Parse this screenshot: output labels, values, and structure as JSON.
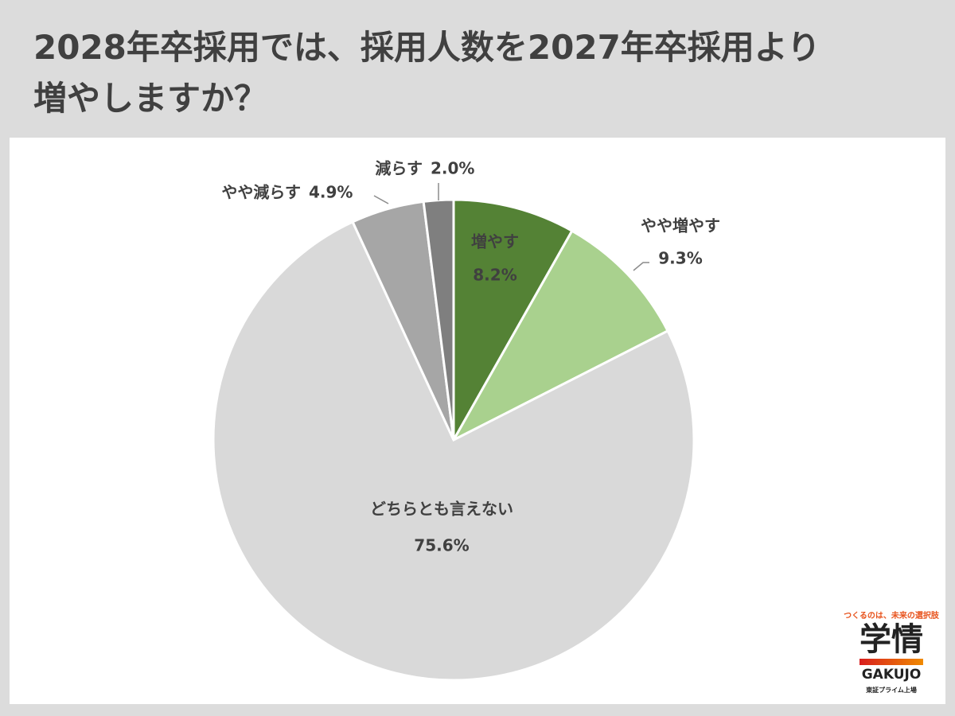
{
  "chart_data": {
    "type": "pie",
    "title": "2028年卒採用では、採用人数を2027年卒採用より増やしますか？",
    "categories": [
      "増やす",
      "やや増やす",
      "どちらとも言えない",
      "やや減らす",
      "減らす"
    ],
    "values": [
      8.2,
      9.3,
      75.6,
      4.9,
      2.0
    ],
    "value_labels": [
      "8.2%",
      "9.3%",
      "75.6%",
      "4.9%",
      "2.0%"
    ],
    "colors": [
      "#548235",
      "#a9d18e",
      "#d9d9d9",
      "#a6a6a6",
      "#7f7f7f"
    ]
  },
  "logo": {
    "tagline": "つくるのは、未来の選択肢",
    "name": "学情",
    "roman": "GAKUJO",
    "note": "東証プライム上場"
  }
}
